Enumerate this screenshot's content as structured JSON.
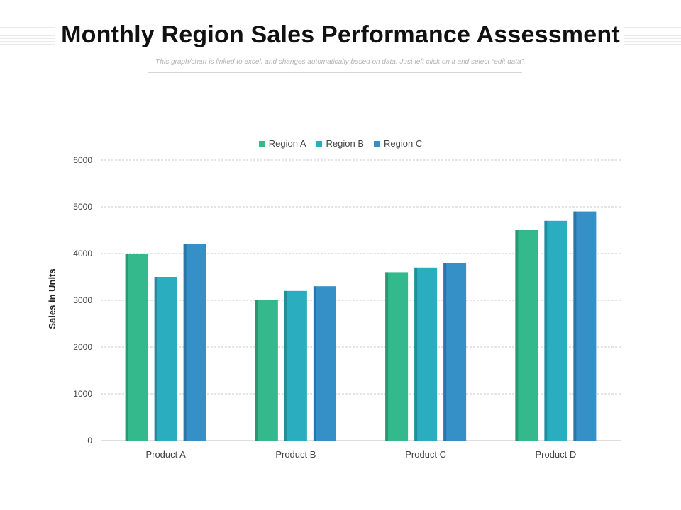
{
  "page": {
    "title": "Monthly Region Sales Performance Assessment",
    "subtitle": "This graph/chart is linked to excel, and changes automatically based on data. Just left click on it and select “edit data”."
  },
  "colors": {
    "region_a": "#33b98c",
    "region_b": "#2aadbf",
    "region_c": "#3590c8",
    "grid": "#c8c8c8",
    "axis_text": "#444444"
  },
  "chart_data": {
    "type": "bar",
    "title": "",
    "xlabel": "",
    "ylabel": "Sales in Units",
    "ylim": [
      0,
      6000
    ],
    "yticks": [
      0,
      1000,
      2000,
      3000,
      4000,
      5000,
      6000
    ],
    "grid": true,
    "legend_position": "top",
    "categories": [
      "Product A",
      "Product B",
      "Product C",
      "Product D"
    ],
    "series": [
      {
        "name": "Region A",
        "color": "#33b98c",
        "values": [
          4000,
          3000,
          3600,
          4500
        ]
      },
      {
        "name": "Region B",
        "color": "#2aadbf",
        "values": [
          3500,
          3200,
          3700,
          4700
        ]
      },
      {
        "name": "Region C",
        "color": "#3590c8",
        "values": [
          4200,
          3300,
          3800,
          4900
        ]
      }
    ]
  }
}
